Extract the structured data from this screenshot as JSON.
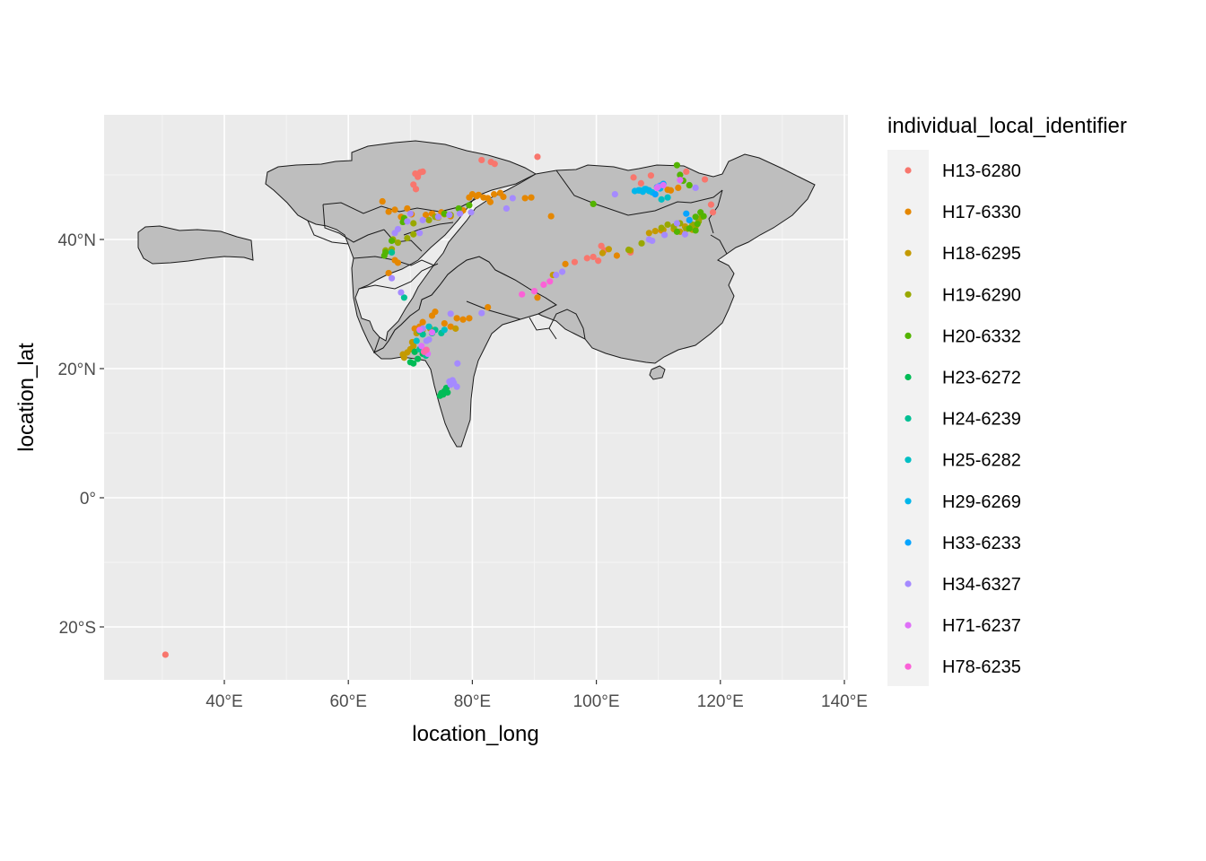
{
  "chart_data": {
    "type": "scatter",
    "subtype": "map",
    "xlabel": "location_long",
    "ylabel": "location_lat",
    "xlim": [
      21,
      141
    ],
    "ylim": [
      -29,
      58
    ],
    "x_ticks": [
      {
        "value": 40,
        "label": "40°E"
      },
      {
        "value": 60,
        "label": "60°E"
      },
      {
        "value": 80,
        "label": "80°E"
      },
      {
        "value": 100,
        "label": "100°E"
      },
      {
        "value": 120,
        "label": "120°E"
      },
      {
        "value": 140,
        "label": "140°E"
      }
    ],
    "y_ticks": [
      {
        "value": -20,
        "label": "20°S"
      },
      {
        "value": 0,
        "label": "0°"
      },
      {
        "value": 20,
        "label": "20°N"
      },
      {
        "value": 40,
        "label": "40°N"
      }
    ],
    "grid": true,
    "panel_background": "#ebebeb",
    "land_color": "#bebebe",
    "legend_title": "individual_local_identifier",
    "legend_position": "right",
    "series": [
      {
        "name": "H13-6280",
        "color": "#F8766D",
        "points": [
          [
            30.5,
            -24.3
          ],
          [
            70.5,
            48.5
          ],
          [
            70.8,
            50.2
          ],
          [
            71.2,
            49.7
          ],
          [
            71.6,
            50.4
          ],
          [
            70.9,
            47.8
          ],
          [
            72.0,
            50.5
          ],
          [
            81.5,
            52.3
          ],
          [
            83.0,
            52.0
          ],
          [
            83.6,
            51.7
          ],
          [
            90.5,
            52.8
          ],
          [
            106.0,
            49.6
          ],
          [
            107.2,
            48.7
          ],
          [
            108.8,
            49.9
          ],
          [
            114.5,
            50.5
          ],
          [
            117.5,
            49.3
          ],
          [
            118.8,
            44.2
          ],
          [
            118.5,
            45.4
          ],
          [
            99.5,
            37.3
          ],
          [
            100.3,
            36.7
          ],
          [
            101.3,
            38.3
          ],
          [
            100.8,
            39.0
          ],
          [
            98.5,
            37.1
          ],
          [
            96.5,
            36.5
          ],
          [
            105.5,
            38.0
          ]
        ]
      },
      {
        "name": "H17-6330",
        "color": "#E58700",
        "points": [
          [
            65.5,
            45.9
          ],
          [
            66.5,
            44.3
          ],
          [
            67.5,
            44.6
          ],
          [
            68.5,
            43.5
          ],
          [
            69.5,
            44.8
          ],
          [
            70.2,
            43.9
          ],
          [
            72.5,
            43.8
          ],
          [
            73.5,
            44.0
          ],
          [
            75.0,
            44.2
          ],
          [
            76.5,
            43.6
          ],
          [
            78.5,
            44.5
          ],
          [
            79.5,
            46.5
          ],
          [
            80.0,
            47.0
          ],
          [
            81.0,
            46.9
          ],
          [
            81.8,
            46.5
          ],
          [
            82.5,
            46.4
          ],
          [
            83.5,
            47.0
          ],
          [
            84.5,
            47.2
          ],
          [
            85.0,
            46.6
          ],
          [
            82.9,
            45.8
          ],
          [
            80.7,
            46.7
          ],
          [
            88.5,
            46.4
          ],
          [
            89.5,
            46.5
          ],
          [
            92.7,
            43.6
          ],
          [
            74.0,
            28.8
          ],
          [
            73.5,
            28.2
          ],
          [
            75.5,
            27.0
          ],
          [
            76.5,
            26.5
          ],
          [
            77.5,
            27.8
          ],
          [
            78.5,
            27.6
          ],
          [
            79.5,
            27.8
          ],
          [
            71.5,
            26.5
          ],
          [
            72.0,
            27.2
          ],
          [
            70.7,
            26.2
          ],
          [
            67.5,
            36.8
          ],
          [
            68.0,
            36.4
          ],
          [
            66.5,
            34.8
          ],
          [
            82.5,
            29.5
          ],
          [
            103.3,
            37.5
          ],
          [
            110.5,
            41.4
          ],
          [
            111.5,
            47.7
          ],
          [
            112.0,
            47.6
          ],
          [
            113.2,
            48.0
          ],
          [
            95.0,
            36.2
          ],
          [
            90.5,
            31.0
          ]
        ]
      },
      {
        "name": "H18-6295",
        "color": "#C49A00",
        "points": [
          [
            69.5,
            22.5
          ],
          [
            70.0,
            23.0
          ],
          [
            70.5,
            23.5
          ],
          [
            69.0,
            21.7
          ],
          [
            71.0,
            25.5
          ],
          [
            70.3,
            24.1
          ],
          [
            68.8,
            22.2
          ],
          [
            72.0,
            26.0
          ],
          [
            73.2,
            26.2
          ],
          [
            77.3,
            26.2
          ],
          [
            74.5,
            43.4
          ],
          [
            75.5,
            43.9
          ],
          [
            105.5,
            38.3
          ],
          [
            108.5,
            41.0
          ],
          [
            109.5,
            41.3
          ],
          [
            110.8,
            41.5
          ],
          [
            112.5,
            41.6
          ],
          [
            113.5,
            41.2
          ],
          [
            114.3,
            42.0
          ],
          [
            115.5,
            41.5
          ],
          [
            116.0,
            42.0
          ],
          [
            102.0,
            38.5
          ],
          [
            101.0,
            37.9
          ],
          [
            93.0,
            34.5
          ]
        ]
      },
      {
        "name": "H19-6290",
        "color": "#99A800",
        "points": [
          [
            67.2,
            40.0
          ],
          [
            68.0,
            39.5
          ],
          [
            69.5,
            40.2
          ],
          [
            70.5,
            40.8
          ],
          [
            66.0,
            38.3
          ],
          [
            67.0,
            38.5
          ],
          [
            70.5,
            42.5
          ],
          [
            73.0,
            43.0
          ],
          [
            74.0,
            43.5
          ],
          [
            76.5,
            43.8
          ],
          [
            110.5,
            41.8
          ],
          [
            111.5,
            42.3
          ],
          [
            112.5,
            42.0
          ],
          [
            113.5,
            42.5
          ],
          [
            114.5,
            41.6
          ],
          [
            115.5,
            42.3
          ],
          [
            116.5,
            42.8
          ],
          [
            117.0,
            43.5
          ],
          [
            105.2,
            38.4
          ],
          [
            107.3,
            39.4
          ]
        ]
      },
      {
        "name": "H20-6332",
        "color": "#53B400",
        "points": [
          [
            113.0,
            51.5
          ],
          [
            113.5,
            50.0
          ],
          [
            114.0,
            49.1
          ],
          [
            115.0,
            48.4
          ],
          [
            116.0,
            43.5
          ],
          [
            116.8,
            44.2
          ],
          [
            117.3,
            43.6
          ],
          [
            116.3,
            42.4
          ],
          [
            116.0,
            41.4
          ],
          [
            115.0,
            41.7
          ],
          [
            113.0,
            41.2
          ],
          [
            99.5,
            45.5
          ],
          [
            75.5,
            44.0
          ],
          [
            77.8,
            44.8
          ],
          [
            79.5,
            45.3
          ],
          [
            69.0,
            43.3
          ],
          [
            68.8,
            42.7
          ],
          [
            66.0,
            38.0
          ],
          [
            65.8,
            37.5
          ],
          [
            67.0,
            39.8
          ]
        ]
      },
      {
        "name": "H23-6272",
        "color": "#00BC56",
        "points": [
          [
            75.0,
            16.2
          ],
          [
            75.5,
            16.5
          ],
          [
            74.8,
            15.8
          ],
          [
            76.0,
            16.3
          ],
          [
            75.3,
            16.0
          ],
          [
            75.8,
            17.0
          ],
          [
            70.0,
            21.0
          ],
          [
            70.5,
            20.8
          ],
          [
            71.2,
            21.5
          ],
          [
            72.0,
            22.3
          ],
          [
            70.7,
            22.6
          ]
        ]
      },
      {
        "name": "H24-6239",
        "color": "#00C094",
        "points": [
          [
            69.0,
            31.0
          ],
          [
            71.5,
            25.8
          ],
          [
            72.0,
            25.3
          ],
          [
            73.5,
            25.5
          ],
          [
            74.0,
            26.0
          ],
          [
            75.0,
            25.5
          ],
          [
            67.0,
            38.0
          ],
          [
            71.5,
            23.0
          ],
          [
            72.5,
            22.0
          ]
        ]
      },
      {
        "name": "H25-6282",
        "color": "#00BFC4",
        "points": [
          [
            111.5,
            46.5
          ],
          [
            110.5,
            46.2
          ],
          [
            108.5,
            47.5
          ],
          [
            75.5,
            26.0
          ],
          [
            73.0,
            26.5
          ],
          [
            71.0,
            24.3
          ],
          [
            107.0,
            47.6
          ]
        ]
      },
      {
        "name": "H29-6269",
        "color": "#00B6EB",
        "points": [
          [
            106.2,
            47.5
          ],
          [
            106.8,
            47.6
          ],
          [
            107.5,
            47.4
          ],
          [
            108.0,
            47.8
          ],
          [
            108.5,
            47.6
          ],
          [
            109.0,
            47.3
          ],
          [
            107.8,
            47.8
          ],
          [
            110.3,
            47.9
          ],
          [
            109.8,
            48.1
          ]
        ]
      },
      {
        "name": "H33-6233",
        "color": "#06A4FF",
        "points": [
          [
            110.2,
            48.3
          ],
          [
            110.8,
            48.6
          ],
          [
            109.5,
            47.0
          ],
          [
            114.5,
            44.0
          ],
          [
            115.0,
            43.0
          ]
        ]
      },
      {
        "name": "H34-6327",
        "color": "#A58AFF",
        "points": [
          [
            76.5,
            17.5
          ],
          [
            77.0,
            17.8
          ],
          [
            76.8,
            18.2
          ],
          [
            77.5,
            17.2
          ],
          [
            76.3,
            18.0
          ],
          [
            77.6,
            20.8
          ],
          [
            67.5,
            41.0
          ],
          [
            68.0,
            41.6
          ],
          [
            69.5,
            42.8
          ],
          [
            70.0,
            44.0
          ],
          [
            71.5,
            41.0
          ],
          [
            72.0,
            43.0
          ],
          [
            74.5,
            43.5
          ],
          [
            76.3,
            43.8
          ],
          [
            78.0,
            44.0
          ],
          [
            79.8,
            44.2
          ],
          [
            85.5,
            44.8
          ],
          [
            86.5,
            46.4
          ],
          [
            67.0,
            34.0
          ],
          [
            68.5,
            31.8
          ],
          [
            72.0,
            26.2
          ],
          [
            72.6,
            24.3
          ],
          [
            73.0,
            24.5
          ],
          [
            76.5,
            28.5
          ],
          [
            81.5,
            28.6
          ],
          [
            93.5,
            34.5
          ],
          [
            94.5,
            35.0
          ],
          [
            103.0,
            47.0
          ],
          [
            108.5,
            40.0
          ],
          [
            109.0,
            39.8
          ],
          [
            111.0,
            40.7
          ],
          [
            113.0,
            42.5
          ],
          [
            114.3,
            40.8
          ],
          [
            110.0,
            48.2
          ],
          [
            116.0,
            48.0
          ]
        ]
      },
      {
        "name": "H71-6237",
        "color": "#DF70F8",
        "points": [
          [
            72.3,
            22.8
          ],
          [
            72.8,
            22.3
          ],
          [
            71.8,
            23.5
          ],
          [
            71.5,
            26.0
          ],
          [
            73.5,
            25.6
          ],
          [
            113.5,
            49.2
          ],
          [
            110.8,
            48.4
          ],
          [
            109.8,
            48.0
          ]
        ]
      },
      {
        "name": "H78-6235",
        "color": "#FB61D7",
        "points": [
          [
            88.0,
            31.5
          ],
          [
            90.0,
            32.0
          ],
          [
            91.5,
            33.0
          ],
          [
            92.5,
            33.5
          ]
        ]
      },
      {
        "name": "",
        "color": "#FF66A8",
        "points": [
          [
            72.2,
            22.6
          ],
          [
            72.6,
            22.9
          ]
        ]
      }
    ]
  }
}
